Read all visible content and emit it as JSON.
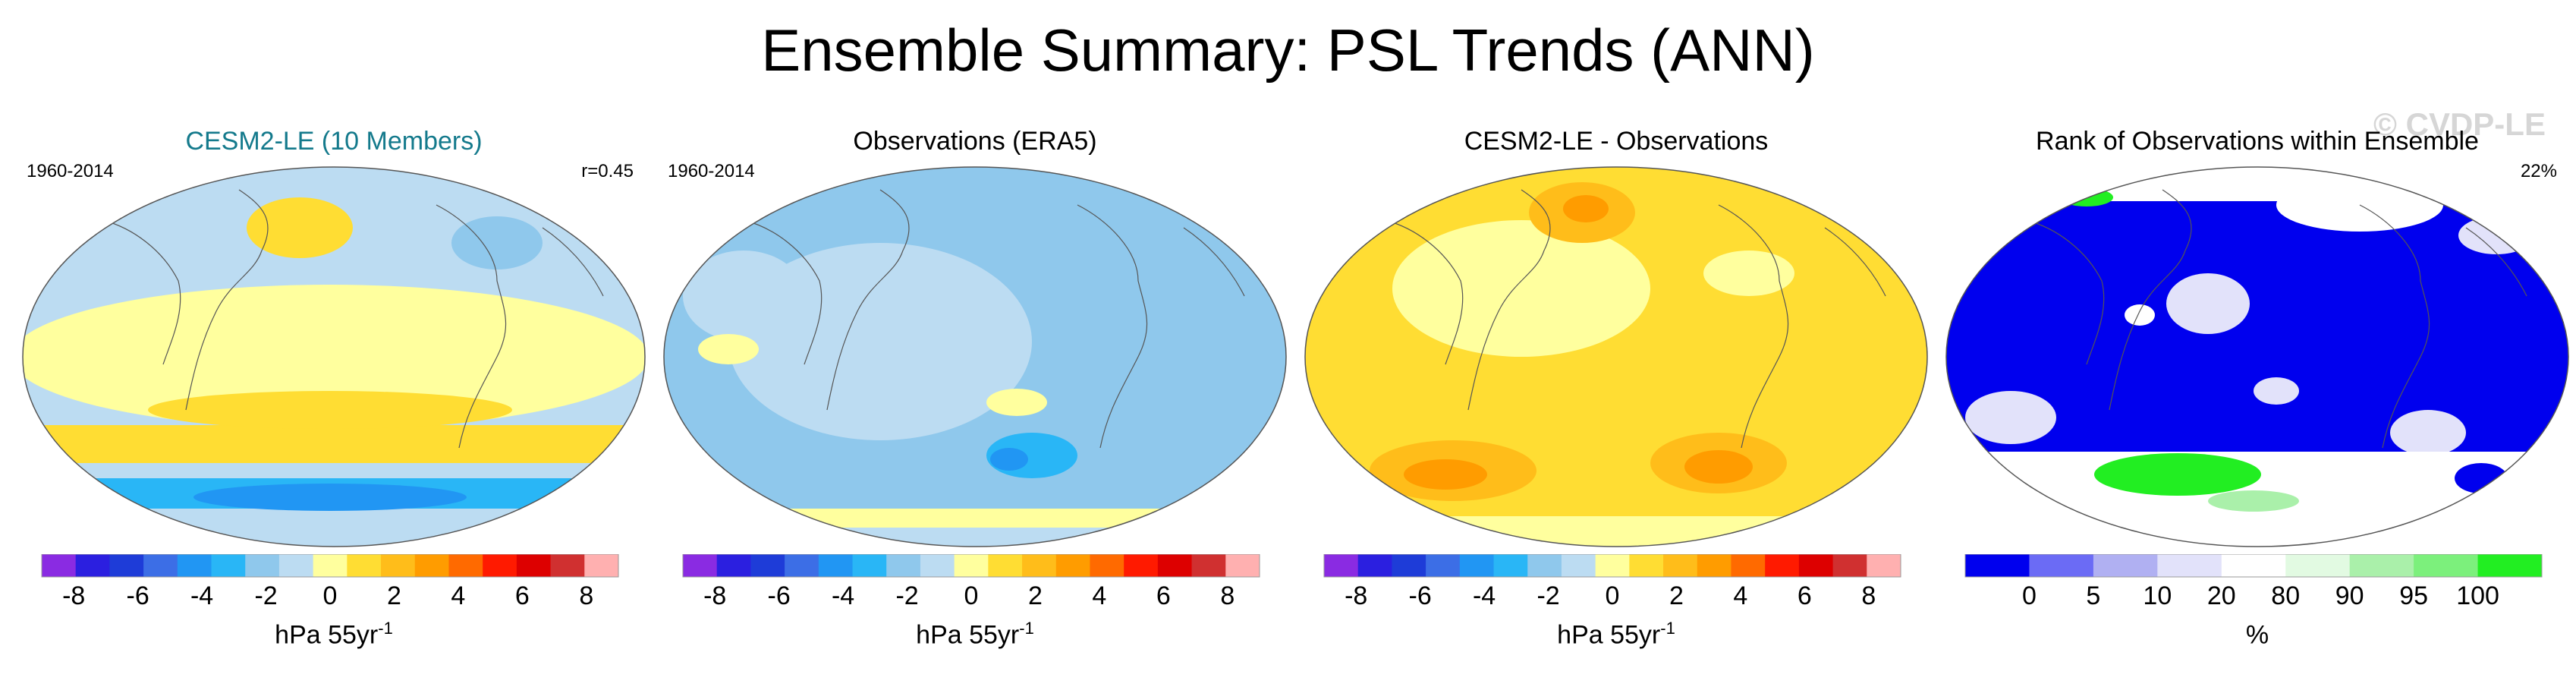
{
  "figure": {
    "title": "Ensemble Summary: PSL Trends (ANN)",
    "watermark": "© CVDP-LE"
  },
  "panels": [
    {
      "title": "CESM2-LE (10 Members)",
      "left_label": "1960-2014",
      "right_label": "r=0.45",
      "unit": "hPa 55yr",
      "unit_exp": "-1"
    },
    {
      "title": "Observations (ERA5)",
      "left_label": "1960-2014",
      "right_label": "",
      "unit": "hPa 55yr",
      "unit_exp": "-1"
    },
    {
      "title": "CESM2-LE - Observations",
      "left_label": "",
      "right_label": "",
      "unit": "hPa 55yr",
      "unit_exp": "-1"
    },
    {
      "title": "Rank of Observations within Ensemble",
      "left_label": "",
      "right_label": "22%",
      "unit": "%",
      "unit_exp": ""
    }
  ],
  "chart_data": [
    {
      "type": "heatmap",
      "title": "CESM2-LE (10 Members)",
      "period": "1960-2014",
      "pattern_correlation": "r=0.45",
      "variable": "PSL trend",
      "colorbar": {
        "ticks": [
          "-8",
          "-6",
          "-4",
          "-2",
          "0",
          "2",
          "4",
          "6",
          "8"
        ],
        "tick_values": [
          -8,
          -6,
          -4,
          -2,
          0,
          2,
          4,
          6,
          8
        ],
        "range": [
          -9,
          9
        ],
        "units": "hPa 55yr-1",
        "colors": [
          "#8a2be2",
          "#2b1fe0",
          "#1e3cd8",
          "#3c6ee6",
          "#2196f3",
          "#29b6f6",
          "#8fc8ec",
          "#bcdcf2",
          "#ffff9e",
          "#ffdd33",
          "#ffbd1a",
          "#ff9c00",
          "#ff6a00",
          "#ff1a00",
          "#dd0000",
          "#d03030",
          "#ffb0b0"
        ]
      },
      "regions": [
        {
          "name": "tropics",
          "value": 0.5
        },
        {
          "name": "north-pacific",
          "value": 1.5
        },
        {
          "name": "north-atlantic",
          "value": -1.5
        },
        {
          "name": "southern-midlatitudes",
          "value": 2
        },
        {
          "name": "southern-ocean-band",
          "value": -4
        },
        {
          "name": "antarctica",
          "value": -1
        }
      ]
    },
    {
      "type": "heatmap",
      "title": "Observations (ERA5)",
      "period": "1960-2014",
      "variable": "PSL trend",
      "colorbar": {
        "ticks": [
          "-8",
          "-6",
          "-4",
          "-2",
          "0",
          "2",
          "4",
          "6",
          "8"
        ],
        "tick_values": [
          -8,
          -6,
          -4,
          -2,
          0,
          2,
          4,
          6,
          8
        ],
        "range": [
          -9,
          9
        ],
        "units": "hPa 55yr-1",
        "colors": [
          "#8a2be2",
          "#2b1fe0",
          "#1e3cd8",
          "#3c6ee6",
          "#2196f3",
          "#29b6f6",
          "#8fc8ec",
          "#bcdcf2",
          "#ffff9e",
          "#ffdd33",
          "#ffbd1a",
          "#ff9c00",
          "#ff6a00",
          "#ff1a00",
          "#dd0000",
          "#d03030",
          "#ffb0b0"
        ]
      },
      "regions": [
        {
          "name": "tropics",
          "value": -1
        },
        {
          "name": "north-pacific",
          "value": -2.5
        },
        {
          "name": "eurasia",
          "value": -1.5
        },
        {
          "name": "southern-midlatitudes",
          "value": -3
        },
        {
          "name": "antarctic-coast",
          "value": 1.5
        }
      ]
    },
    {
      "type": "heatmap",
      "title": "CESM2-LE - Observations",
      "variable": "PSL trend difference",
      "colorbar": {
        "ticks": [
          "-8",
          "-6",
          "-4",
          "-2",
          "0",
          "2",
          "4",
          "6",
          "8"
        ],
        "tick_values": [
          -8,
          -6,
          -4,
          -2,
          0,
          2,
          4,
          6,
          8
        ],
        "range": [
          -9,
          9
        ],
        "units": "hPa 55yr-1",
        "colors": [
          "#8a2be2",
          "#2b1fe0",
          "#1e3cd8",
          "#3c6ee6",
          "#2196f3",
          "#29b6f6",
          "#8fc8ec",
          "#bcdcf2",
          "#ffff9e",
          "#ffdd33",
          "#ffbd1a",
          "#ff9c00",
          "#ff6a00",
          "#ff1a00",
          "#dd0000",
          "#d03030",
          "#ffb0b0"
        ]
      },
      "regions": [
        {
          "name": "tropics",
          "value": 2
        },
        {
          "name": "north-pacific",
          "value": 3.5
        },
        {
          "name": "north-atlantic",
          "value": 1
        },
        {
          "name": "south-pacific",
          "value": 5
        },
        {
          "name": "south-atlantic",
          "value": 5
        },
        {
          "name": "antarctica",
          "value": 1
        }
      ]
    },
    {
      "type": "heatmap",
      "title": "Rank of Observations within Ensemble",
      "summary": "22%",
      "variable": "rank percentile",
      "colorbar": {
        "ticks": [
          "0",
          "5",
          "10",
          "20",
          "80",
          "90",
          "95",
          "100"
        ],
        "tick_values": [
          0,
          5,
          10,
          20,
          80,
          90,
          95,
          100
        ],
        "units": "%",
        "colors": [
          "#0000ee",
          "#6b6bf5",
          "#b0b0f2",
          "#e2e2fa",
          "#ffffff",
          "#e2fae2",
          "#aaf0aa",
          "#7cf07c",
          "#22ee22"
        ]
      },
      "regions": [
        {
          "name": "most-of-globe",
          "value": 0
        },
        {
          "name": "north-pacific-patch",
          "value": 15
        },
        {
          "name": "southern-ocean-patch",
          "value": 100
        },
        {
          "name": "arctic-patch",
          "value": 100
        },
        {
          "name": "antarctica",
          "value": 50
        }
      ]
    }
  ]
}
